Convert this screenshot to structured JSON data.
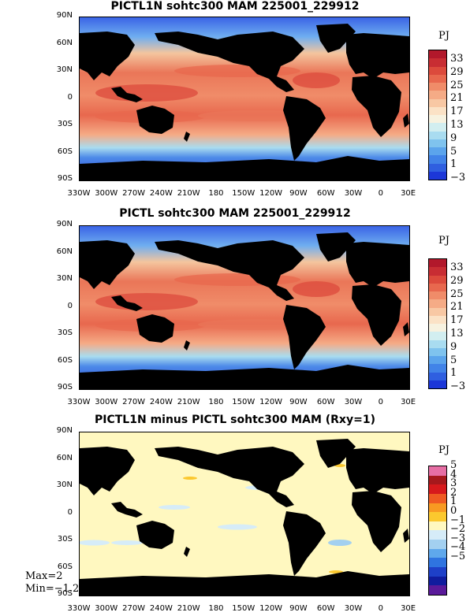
{
  "panels": [
    {
      "title": "PICTL1N sohtc300 MAM 225001_229912",
      "colorbar_title": "PJ",
      "colorbar_labels": [
        "33",
        "29",
        "25",
        "21",
        "17",
        "13",
        "9",
        "5",
        "1",
        "−3"
      ],
      "colorbar_colors": [
        "#b2182b",
        "#c82d33",
        "#dc4a3c",
        "#e8684e",
        "#f08c69",
        "#f5ab86",
        "#f8c8a4",
        "#fbe2c6",
        "#f7f2e0",
        "#d2eef0",
        "#a9dcf0",
        "#7fc3ee",
        "#5ba4ec",
        "#4183e8",
        "#2f5fe0",
        "#1c37d8"
      ]
    },
    {
      "title": "PICTL sohtc300 MAM 225001_229912",
      "colorbar_title": "PJ",
      "colorbar_labels": [
        "33",
        "29",
        "25",
        "21",
        "17",
        "13",
        "9",
        "5",
        "1",
        "−3"
      ],
      "colorbar_colors": [
        "#b2182b",
        "#c82d33",
        "#dc4a3c",
        "#e8684e",
        "#f08c69",
        "#f5ab86",
        "#f8c8a4",
        "#fbe2c6",
        "#f7f2e0",
        "#d2eef0",
        "#a9dcf0",
        "#7fc3ee",
        "#5ba4ec",
        "#4183e8",
        "#2f5fe0",
        "#1c37d8"
      ]
    },
    {
      "title": "PICTL1N minus PICTL sohtc300 MAM (Rxy=1)",
      "colorbar_title": "PJ",
      "colorbar_labels": [
        "5",
        "4",
        "3",
        "2",
        "1",
        "0",
        "−1",
        "−2",
        "−3",
        "−4",
        "−5"
      ],
      "colorbar_colors": [
        "#e66ea4",
        "#a6181c",
        "#d7191c",
        "#ef5a22",
        "#f89a22",
        "#fbc82e",
        "#fff8c0",
        "#d6ecf8",
        "#a3d0f0",
        "#5fa8ec",
        "#2f74e0",
        "#1e40c8",
        "#101c9e",
        "#5a1a9a"
      ]
    }
  ],
  "lat_labels": [
    "90N",
    "60N",
    "30N",
    "0",
    "30S",
    "60S",
    "90S"
  ],
  "lon_labels": [
    "330W",
    "300W",
    "270W",
    "240W",
    "210W",
    "180",
    "150W",
    "120W",
    "90W",
    "60W",
    "30W",
    "0",
    "30E"
  ],
  "stats": {
    "max": "Max=2",
    "min": "Min=−1.2"
  }
}
